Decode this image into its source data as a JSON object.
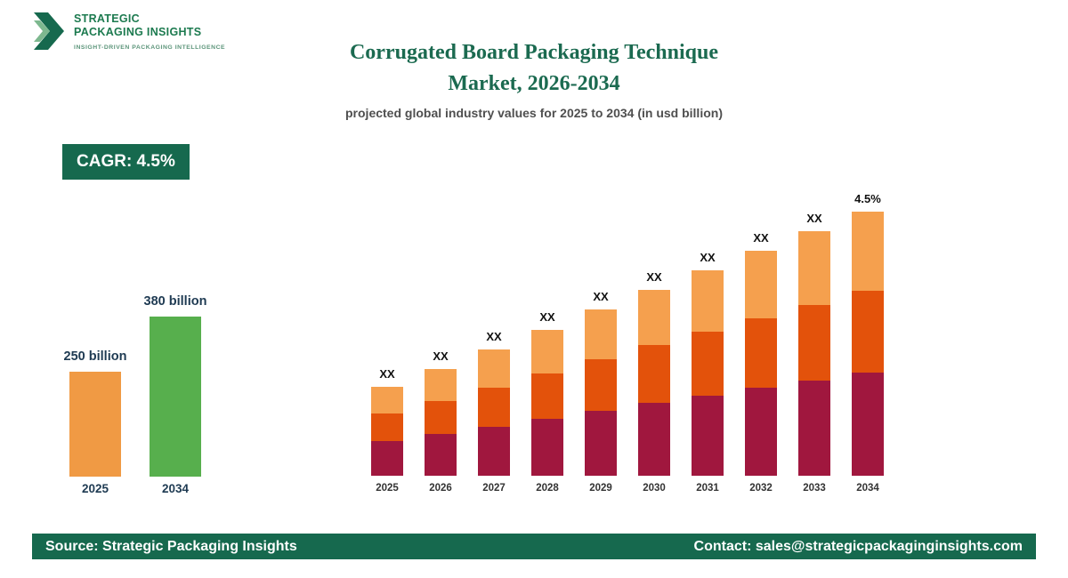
{
  "logo": {
    "line1": "STRATEGIC",
    "line2": "PACKAGING INSIGHTS",
    "tagline": "INSIGHT-DRIVEN PACKAGING INTELLIGENCE"
  },
  "header": {
    "title_line1": "Corrugated Board Packaging Technique",
    "title_line2": "Market, 2026-2034",
    "subtitle": "projected global industry values for 2025 to 2034 (in usd billion)"
  },
  "badge": {
    "label": "CAGR: 4.5%"
  },
  "colors": {
    "brand_green": "#16694E",
    "title_green": "#1B6A50",
    "summary_orange": "#F09A44",
    "summary_green": "#57AF4D",
    "stack_bottom_maroon": "#A0173E",
    "stack_middle_orange_red": "#E3520B",
    "stack_top_light_orange": "#F5A04E"
  },
  "chart_data": [
    {
      "id": "summary-comparison",
      "type": "bar",
      "categories": [
        "2025",
        "2034"
      ],
      "values": [
        250,
        380
      ],
      "value_labels": [
        "250 billion",
        "380 billion"
      ],
      "colors": [
        "#F09A44",
        "#57AF4D"
      ],
      "ylim": [
        0,
        380
      ]
    },
    {
      "id": "projection-by-year",
      "type": "stacked-bar",
      "categories": [
        "2025",
        "2026",
        "2027",
        "2028",
        "2029",
        "2030",
        "2031",
        "2032",
        "2033",
        "2034"
      ],
      "series": [
        {
          "name": "bottom",
          "color": "#A0173E",
          "values": [
            39,
            47,
            55,
            64,
            73,
            82,
            90,
            99,
            107,
            116
          ]
        },
        {
          "name": "middle",
          "color": "#E3520B",
          "values": [
            31,
            37,
            44,
            51,
            58,
            65,
            72,
            78,
            85,
            92
          ]
        },
        {
          "name": "top",
          "color": "#F5A04E",
          "values": [
            30,
            36,
            43,
            49,
            56,
            62,
            69,
            76,
            83,
            89
          ]
        }
      ],
      "bar_labels": [
        "XX",
        "XX",
        "XX",
        "XX",
        "XX",
        "XX",
        "XX",
        "XX",
        "XX",
        "4.5%"
      ]
    }
  ],
  "footer": {
    "source": "Source: Strategic Packaging Insights",
    "contact": "Contact: sales@strategicpackaginginsights.com"
  }
}
